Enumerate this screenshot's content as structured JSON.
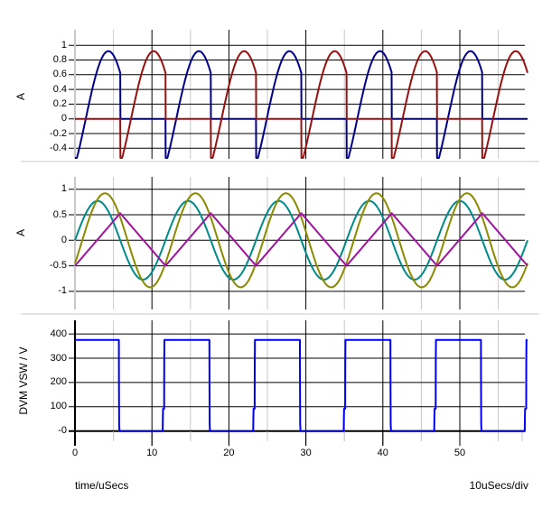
{
  "x_axis": {
    "label": "time/uSecs",
    "scale_label": "10uSecs/div",
    "major_ticks": [
      0,
      10,
      20,
      30,
      40,
      50
    ],
    "minor_ticks": [
      5,
      15,
      25,
      35,
      45,
      55
    ],
    "end_tick_us": 58.1,
    "t_max": 58.8
  },
  "plots": [
    {
      "ylabel": "A",
      "y_tick_labels": [
        "1",
        "0.8",
        "0.6",
        "0.4",
        "0.2",
        "0",
        "-0.2",
        "-0.4"
      ],
      "y_tick_values": [
        1,
        0.8,
        0.6,
        0.4,
        0.2,
        0,
        -0.2,
        -0.4
      ]
    },
    {
      "ylabel": "A",
      "y_tick_labels": [
        "1",
        "0.5",
        "0",
        "-0.5",
        "-1"
      ],
      "y_tick_values": [
        1,
        0.5,
        0,
        -0.5,
        -1
      ]
    },
    {
      "ylabel": "DVM VSW / V",
      "y_tick_labels": [
        "400",
        "300",
        "200",
        "100",
        "-0"
      ],
      "y_tick_values": [
        400,
        300,
        200,
        100,
        0
      ]
    }
  ],
  "chart_data": {
    "type": "line",
    "x_unit": "uSecs",
    "x_range": [
      0,
      58.8
    ],
    "x_divisions_label": "10uSecs/div",
    "switching_period_us": 11.76,
    "grid": {
      "major_color": "#000000",
      "minor_color": "#C8C8C8",
      "separator_color": "#C8C8C8"
    },
    "series": [
      {
        "plot": 0,
        "name": "blue-switch-current",
        "color": "#00008B",
        "waveform": "gated_sine",
        "period_us": 11.76,
        "amplitude": 0.92,
        "zero_cross_us": 1.4,
        "on_start_frac": 0.0,
        "peak": 0.92,
        "start_value": -0.5
      },
      {
        "plot": 0,
        "name": "red-switch-current",
        "color": "#971111",
        "waveform": "gated_sine",
        "period_us": 11.76,
        "amplitude": 0.92,
        "zero_cross_us": 1.4,
        "on_start_frac": 0.5,
        "peak": 0.92,
        "start_value": 0
      },
      {
        "plot": 1,
        "name": "teal-sine-current",
        "color": "#008B8B",
        "waveform": "sine",
        "period_us": 11.76,
        "amplitude": 0.77,
        "phase_us": 0
      },
      {
        "plot": 1,
        "name": "olive-sine-current",
        "color": "#8B8B00",
        "waveform": "sine",
        "period_us": 11.76,
        "amplitude": 0.92,
        "phase_us": 0.95
      },
      {
        "plot": 1,
        "name": "purple-triangle-current",
        "color": "#A014A0",
        "waveform": "triangle",
        "period_us": 11.76,
        "min": -0.5,
        "max": 0.53
      },
      {
        "plot": 2,
        "name": "switch-node-voltage",
        "color": "#0000F0",
        "waveform": "piecewise",
        "period_us": 11.76,
        "high_v": 375,
        "low_v": 0,
        "points": [
          [
            0,
            375
          ],
          [
            5.7,
            375
          ],
          [
            5.74,
            25
          ],
          [
            5.78,
            0
          ],
          [
            11.4,
            0
          ],
          [
            11.43,
            92
          ],
          [
            11.58,
            92
          ],
          [
            11.61,
            375
          ],
          [
            11.76,
            375
          ]
        ]
      }
    ]
  }
}
